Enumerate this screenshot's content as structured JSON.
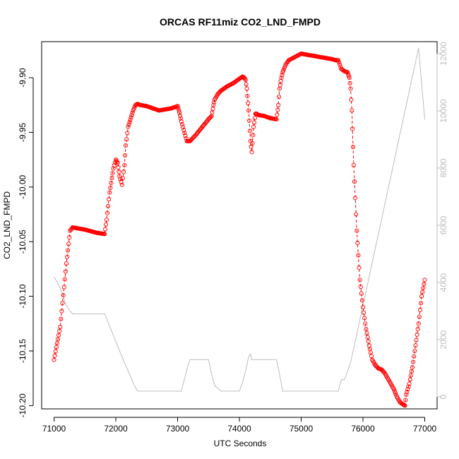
{
  "chart_data": {
    "type": "scatter",
    "title": "ORCAS RF11miz CO2_LND_FMPD",
    "xlabel": "UTC Seconds",
    "ylabel": "CO2_LND_FMPD",
    "xlim": [
      70800,
      77200
    ],
    "ylim": [
      -10.203,
      -9.867
    ],
    "y2lim": [
      -420,
      12420
    ],
    "x_ticks": [
      "71000",
      "72000",
      "73000",
      "74000",
      "75000",
      "76000",
      "77000"
    ],
    "y_ticks": [
      "-10.20",
      "-10.15",
      "-10.10",
      "-10.05",
      "-10.00",
      "-9.95",
      "-9.90"
    ],
    "y2_ticks": [
      "0",
      "2000",
      "4000",
      "6000",
      "8000",
      "10000",
      "12000"
    ],
    "colors": {
      "series": "#ff0000",
      "altitude": "#bdbdbd",
      "axis": "#000000",
      "axis2": "#bdbdbd"
    },
    "series": [
      {
        "style": "points-with-dashed-line",
        "x": [
          71000,
          71100,
          71200,
          71260,
          71300,
          71500,
          71700,
          71820,
          71850,
          71900,
          71960,
          72000,
          72030,
          72060,
          72100,
          72140,
          72160,
          72200,
          72280,
          72320,
          72350,
          72400,
          72500,
          72600,
          72700,
          72800,
          72900,
          73000,
          73030,
          73060,
          73100,
          73150,
          73200,
          73300,
          73400,
          73500,
          73550,
          73580,
          73600,
          73650,
          73700,
          73800,
          73900,
          74000,
          74050,
          74080,
          74100,
          74120,
          74150,
          74180,
          74200,
          74210,
          74230,
          74260,
          74280,
          74300,
          74400,
          74500,
          74600,
          74630,
          74650,
          74680,
          74700,
          74750,
          74800,
          74900,
          75000,
          75100,
          75200,
          75300,
          75400,
          75500,
          75560,
          75600,
          75650,
          75700,
          75750,
          75780,
          75800,
          75820,
          75850,
          75900,
          75950,
          76000,
          76050,
          76100,
          76150,
          76200,
          76250,
          76300,
          76350,
          76400,
          76450,
          76500,
          76550,
          76600,
          76650,
          76680,
          76700,
          76750,
          76800,
          76850,
          76900,
          76950,
          77000
        ],
        "y": [
          -10.158,
          -10.128,
          -10.07,
          -10.04,
          -10.037,
          -10.039,
          -10.042,
          -10.043,
          -10.03,
          -10.005,
          -9.983,
          -9.975,
          -9.978,
          -9.99,
          -9.998,
          -9.98,
          -9.962,
          -9.945,
          -9.93,
          -9.925,
          -9.924,
          -9.925,
          -9.926,
          -9.928,
          -9.93,
          -9.929,
          -9.928,
          -9.926,
          -9.932,
          -9.94,
          -9.948,
          -9.958,
          -9.958,
          -9.952,
          -9.945,
          -9.938,
          -9.935,
          -9.925,
          -9.92,
          -9.915,
          -9.912,
          -9.908,
          -9.905,
          -9.901,
          -9.899,
          -9.9,
          -9.902,
          -9.91,
          -9.93,
          -9.958,
          -9.968,
          -9.96,
          -9.945,
          -9.933,
          -9.933,
          -9.934,
          -9.935,
          -9.937,
          -9.938,
          -9.925,
          -9.91,
          -9.9,
          -9.895,
          -9.888,
          -9.884,
          -9.881,
          -9.878,
          -9.879,
          -9.88,
          -9.881,
          -9.882,
          -9.883,
          -9.884,
          -9.884,
          -9.892,
          -9.894,
          -9.895,
          -9.9,
          -9.91,
          -9.93,
          -9.98,
          -10.04,
          -10.085,
          -10.11,
          -10.13,
          -10.145,
          -10.158,
          -10.163,
          -10.166,
          -10.167,
          -10.17,
          -10.175,
          -10.18,
          -10.185,
          -10.192,
          -10.197,
          -10.199,
          -10.2,
          -10.19,
          -10.18,
          -10.165,
          -10.145,
          -10.125,
          -10.1,
          -10.085
        ]
      },
      {
        "style": "line",
        "axis": "right",
        "x": [
          71000,
          71100,
          71150,
          71200,
          71260,
          71300,
          71500,
          71700,
          71820,
          71950,
          72100,
          72200,
          72300,
          72350,
          72400,
          72800,
          73060,
          73180,
          73200,
          73300,
          73400,
          73500,
          73550,
          73600,
          73700,
          73800,
          73900,
          74000,
          74050,
          74100,
          74150,
          74180,
          74200,
          74250,
          74300,
          74600,
          74640,
          74700,
          75000,
          75300,
          75500,
          75600,
          75650,
          75700,
          75800,
          75900,
          76000,
          76100,
          76200,
          76300,
          76400,
          76500,
          76600,
          76700,
          76800,
          76900,
          77000
        ],
        "y": [
          4200,
          3800,
          3500,
          3200,
          3000,
          2900,
          2900,
          2900,
          2900,
          2200,
          1400,
          900,
          400,
          200,
          200,
          200,
          200,
          1200,
          1300,
          1300,
          1300,
          1300,
          800,
          400,
          200,
          200,
          200,
          200,
          500,
          900,
          1400,
          1500,
          1300,
          1300,
          1300,
          1300,
          900,
          200,
          200,
          200,
          200,
          200,
          600,
          600,
          1200,
          2200,
          3200,
          4200,
          5200,
          6200,
          7200,
          8200,
          9200,
          10200,
          11200,
          12200,
          9700
        ]
      }
    ]
  }
}
